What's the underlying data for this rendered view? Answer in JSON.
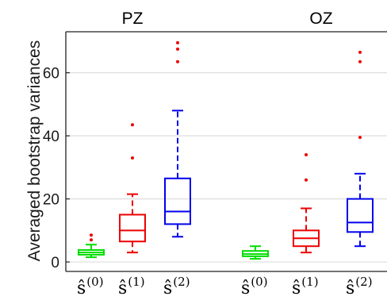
{
  "chart_data": {
    "type": "box",
    "ylabel": "Averaged bootstrap variances",
    "ylim": [
      -3,
      73
    ],
    "yticks": [
      0,
      20,
      40,
      60
    ],
    "grid": true,
    "panels": [
      {
        "title": "PZ",
        "boxes": [
          {
            "label": "ŝ",
            "sup": "(0)",
            "color": "#00dd00",
            "min": 1.5,
            "q1": 2.3,
            "median": 3.0,
            "q3": 3.8,
            "max": 5.5,
            "outliers": [
              7.0,
              8.5
            ]
          },
          {
            "label": "ŝ",
            "sup": "(1)",
            "color": "#ee0000",
            "min": 3.0,
            "q1": 6.5,
            "median": 10.0,
            "q3": 15.0,
            "max": 21.5,
            "outliers": [
              33.0,
              43.5
            ]
          },
          {
            "label": "ŝ",
            "sup": "(2)",
            "color": "#0000ee",
            "min": 8.0,
            "q1": 12.0,
            "median": 16.0,
            "q3": 26.5,
            "max": 48.0,
            "outliers": [
              63.5,
              67.5,
              69.5
            ]
          }
        ]
      },
      {
        "title": "OZ",
        "boxes": [
          {
            "label": "ŝ",
            "sup": "(0)",
            "color": "#00dd00",
            "min": 1.0,
            "q1": 1.8,
            "median": 2.5,
            "q3": 3.5,
            "max": 5.0,
            "outliers": []
          },
          {
            "label": "ŝ",
            "sup": "(1)",
            "color": "#ee0000",
            "min": 3.0,
            "q1": 5.0,
            "median": 7.5,
            "q3": 10.0,
            "max": 17.0,
            "outliers": [
              26.0,
              34.0
            ]
          },
          {
            "label": "ŝ",
            "sup": "(2)",
            "color": "#0000ee",
            "min": 5.0,
            "q1": 9.5,
            "median": 12.5,
            "q3": 20.0,
            "max": 28.0,
            "outliers": [
              39.5,
              63.5,
              66.5
            ]
          }
        ]
      }
    ]
  }
}
